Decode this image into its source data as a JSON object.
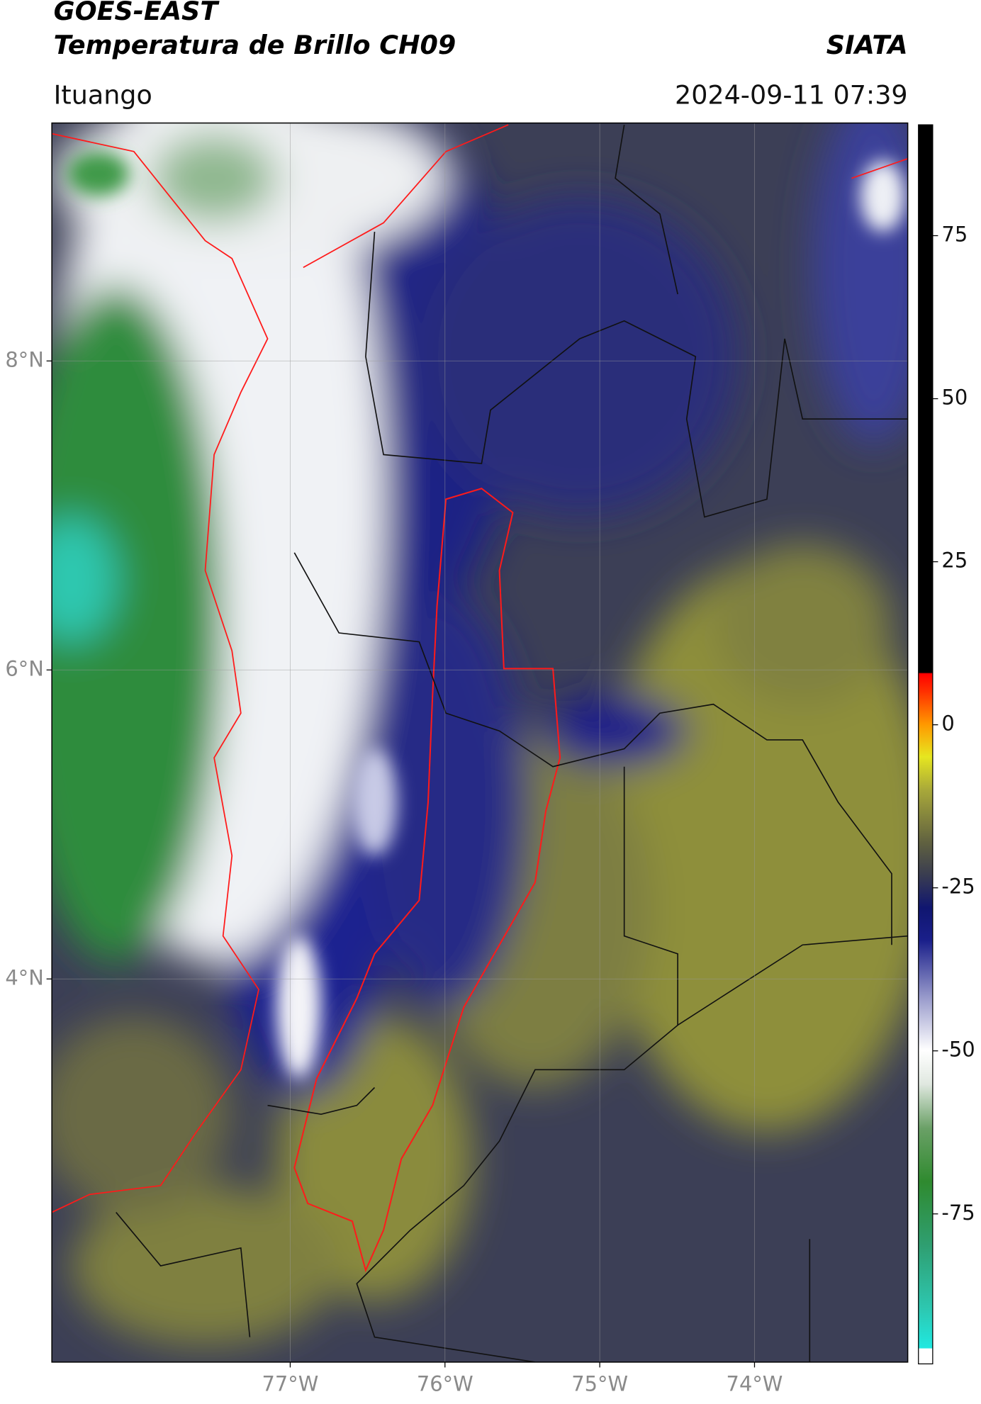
{
  "header": {
    "title": "GOES-EAST",
    "subtitle": "Temperatura de Brillo CH09",
    "source": "SIATA",
    "region": "Ituango",
    "datetime": "2024-09-11 07:39"
  },
  "map": {
    "xlim": [
      -78.54,
      -73.01
    ],
    "ylim": [
      1.52,
      9.54
    ],
    "grid": true,
    "xticks": [
      {
        "value": -77,
        "label": "77°W"
      },
      {
        "value": -76,
        "label": "76°W"
      },
      {
        "value": -75,
        "label": "75°W"
      },
      {
        "value": -74,
        "label": "74°W"
      }
    ],
    "yticks": [
      {
        "value": 8,
        "label": "8°N"
      },
      {
        "value": 6,
        "label": "6°N"
      },
      {
        "value": 4,
        "label": "4°N"
      }
    ]
  },
  "colorbar": {
    "lim": [
      -98,
      92
    ],
    "ticks": [
      75,
      50,
      25,
      0,
      -25,
      -50,
      -75
    ]
  }
}
